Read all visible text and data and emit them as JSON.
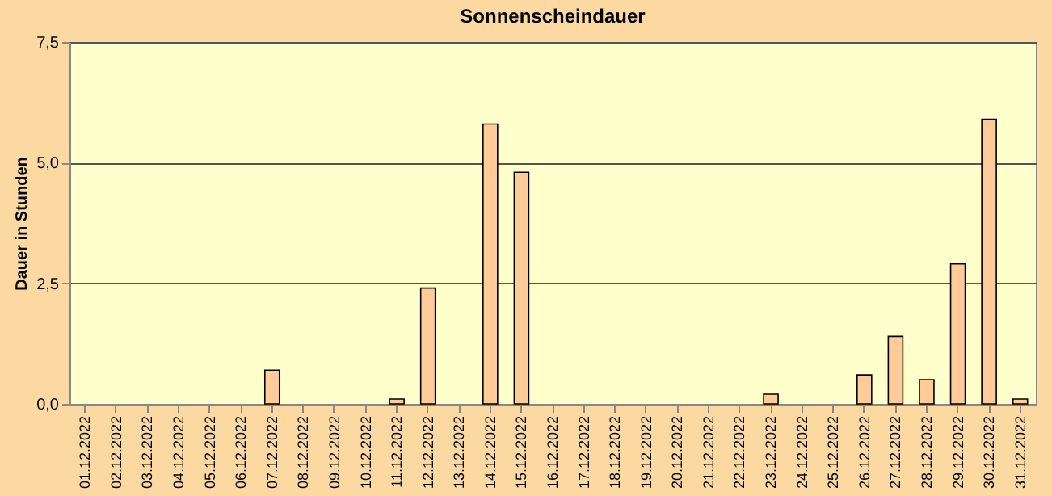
{
  "chart_data": {
    "type": "bar",
    "title": "Sonnenscheindauer",
    "ylabel": "Dauer in Stunden",
    "categories": [
      "01.12.2022",
      "02.12.2022",
      "03.12.2022",
      "04.12.2022",
      "05.12.2022",
      "06.12.2022",
      "07.12.2022",
      "08.12.2022",
      "09.12.2022",
      "10.12.2022",
      "11.12.2022",
      "12.12.2022",
      "13.12.2022",
      "14.12.2022",
      "15.12.2022",
      "16.12.2022",
      "17.12.2022",
      "18.12.2022",
      "19.12.2022",
      "20.12.2022",
      "21.12.2022",
      "22.12.2022",
      "23.12.2022",
      "24.12.2022",
      "25.12.2022",
      "26.12.2022",
      "27.12.2022",
      "28.12.2022",
      "29.12.2022",
      "30.12.2022",
      "31.12.2022"
    ],
    "values": [
      0,
      0,
      0,
      0,
      0,
      0,
      0.7,
      0,
      0,
      0,
      0.1,
      2.4,
      0,
      5.8,
      4.8,
      0,
      0,
      0,
      0,
      0,
      0,
      0,
      0.2,
      0,
      0,
      0.6,
      1.4,
      0.5,
      2.9,
      5.9,
      0.1
    ],
    "color": "#ffcc99",
    "ylim": [
      0,
      7.5
    ],
    "yticks": [
      {
        "value": 0,
        "label": "0,0"
      },
      {
        "value": 2.5,
        "label": "2,5"
      },
      {
        "value": 5,
        "label": "5,0"
      },
      {
        "value": 7.5,
        "label": "7,5"
      }
    ],
    "grid": "y"
  }
}
